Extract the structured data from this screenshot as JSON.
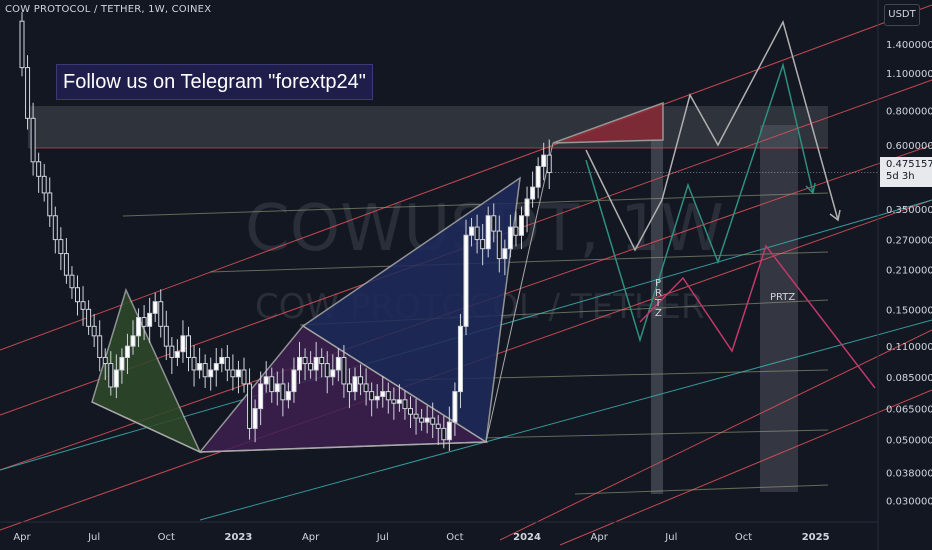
{
  "header": {
    "symbol_title": "COW PROTOCOL / TETHER, 1W, COINEX"
  },
  "banner": {
    "text": "Follow us on Telegram \"forextp24\""
  },
  "watermark": {
    "ticker": "COWUSDT, 1W",
    "name": "COW PROTOCOL / TETHER"
  },
  "price_axis": {
    "unit_button": "USDT",
    "current_price": "0.475157",
    "countdown": "5d 3h"
  },
  "annotations": {
    "prtz_vertical": "P R T Z",
    "prtz_label": "PRTZ"
  },
  "colors": {
    "background": "#131722",
    "candle_up": "#ffffff",
    "candle_down": "#ffffff",
    "channel_red": "#e0525a",
    "channel_teal": "#3fb8b8",
    "pattern_green": "#2e4a2a",
    "pattern_purple": "#3d2050",
    "pattern_blue": "#1e2b5c",
    "pattern_red": "#8a2a35"
  },
  "chart_data": {
    "type": "candlestick",
    "title": "COW PROTOCOL / TETHER, 1W, COINEX",
    "y_scale": "log",
    "ylim": [
      0.025,
      1.9
    ],
    "y_ticks": [
      1.4,
      1.1,
      0.8,
      0.6,
      0.35,
      0.27,
      0.21,
      0.15,
      0.11,
      0.085,
      0.065,
      0.05,
      0.038,
      0.03
    ],
    "y_tick_labels": [
      "1.400000",
      "1.100000",
      "0.800000",
      "0.600000",
      "0.350000",
      "0.270000",
      "0.210000",
      "0.150000",
      "0.110000",
      "0.085000",
      "0.065000",
      "0.050000",
      "0.038000",
      "0.030000"
    ],
    "x_tick_labels": [
      "Apr",
      "Jul",
      "Oct",
      "2023",
      "Apr",
      "Jul",
      "Oct",
      "2024",
      "Apr",
      "Jul",
      "Oct",
      "2025"
    ],
    "x_tick_weeks": [
      0,
      13,
      26,
      39,
      52,
      65,
      78,
      91,
      104,
      117,
      130,
      143
    ],
    "current_price": 0.475157,
    "closes": [
      1.15,
      0.75,
      0.52,
      0.46,
      0.4,
      0.33,
      0.27,
      0.24,
      0.2,
      0.18,
      0.16,
      0.15,
      0.13,
      0.12,
      0.1,
      0.095,
      0.078,
      0.09,
      0.1,
      0.11,
      0.12,
      0.14,
      0.13,
      0.145,
      0.16,
      0.13,
      0.11,
      0.1,
      0.105,
      0.12,
      0.1,
      0.09,
      0.095,
      0.085,
      0.09,
      0.095,
      0.1,
      0.09,
      0.085,
      0.09,
      0.08,
      0.055,
      0.065,
      0.08,
      0.085,
      0.075,
      0.08,
      0.07,
      0.075,
      0.09,
      0.1,
      0.095,
      0.09,
      0.1,
      0.095,
      0.085,
      0.09,
      0.1,
      0.08,
      0.075,
      0.085,
      0.08,
      0.075,
      0.07,
      0.072,
      0.075,
      0.07,
      0.068,
      0.07,
      0.065,
      0.062,
      0.06,
      0.058,
      0.06,
      0.057,
      0.055,
      0.05,
      0.058,
      0.075,
      0.13,
      0.28,
      0.3,
      0.27,
      0.25,
      0.33,
      0.29,
      0.23,
      0.25,
      0.3,
      0.28,
      0.33,
      0.38,
      0.42,
      0.5,
      0.55,
      0.475
    ]
  }
}
